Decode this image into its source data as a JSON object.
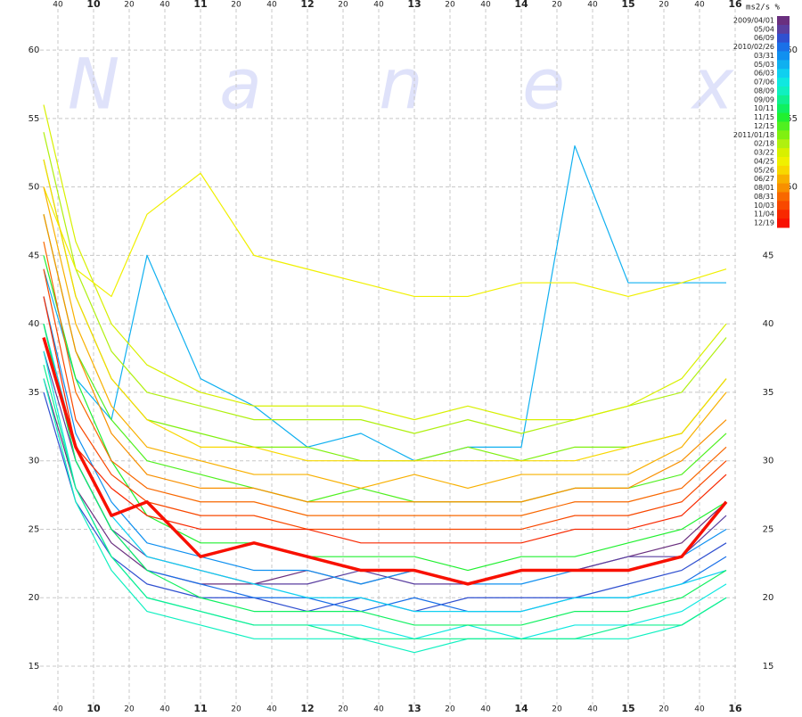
{
  "chart_data": {
    "type": "line",
    "unit_label": "ms2/s %",
    "watermark": [
      "N",
      "a",
      "n",
      "e",
      "x"
    ],
    "x": [
      572,
      590,
      610,
      630,
      660,
      690,
      720,
      750,
      780,
      810,
      840,
      870,
      900,
      930,
      955
    ],
    "xlim": [
      570,
      962
    ],
    "xticks": [
      {
        "value": 580,
        "label": "40"
      },
      {
        "value": 600,
        "label": "10"
      },
      {
        "value": 620,
        "label": "20"
      },
      {
        "value": 640,
        "label": "40"
      },
      {
        "value": 660,
        "label": "11"
      },
      {
        "value": 680,
        "label": "20"
      },
      {
        "value": 700,
        "label": "40"
      },
      {
        "value": 720,
        "label": "12"
      },
      {
        "value": 740,
        "label": "20"
      },
      {
        "value": 760,
        "label": "40"
      },
      {
        "value": 780,
        "label": "13"
      },
      {
        "value": 800,
        "label": "20"
      },
      {
        "value": 820,
        "label": "40"
      },
      {
        "value": 840,
        "label": "14"
      },
      {
        "value": 860,
        "label": "20"
      },
      {
        "value": 880,
        "label": "40"
      },
      {
        "value": 900,
        "label": "15"
      },
      {
        "value": 920,
        "label": "20"
      },
      {
        "value": 940,
        "label": "40"
      },
      {
        "value": 960,
        "label": "16"
      }
    ],
    "ylim": [
      12.2,
      63
    ],
    "yticks": [
      15,
      20,
      25,
      30,
      35,
      40,
      45,
      50,
      55,
      60
    ],
    "colorbar_ticks": [
      50,
      55,
      60
    ],
    "grid": true,
    "series": [
      {
        "name": "2009/04/01",
        "color": "#6a2f7f",
        "values": [
          36,
          28,
          24,
          22,
          21,
          21,
          22,
          21,
          22,
          21,
          22,
          22,
          23,
          24,
          27
        ]
      },
      {
        "name": "05/04",
        "color": "#5a3fa0",
        "values": [
          38,
          30,
          25,
          23,
          22,
          21,
          21,
          22,
          21,
          21,
          22,
          22,
          23,
          23,
          26
        ]
      },
      {
        "name": "06/09",
        "color": "#3050d0",
        "values": [
          35,
          27,
          23,
          21,
          20,
          20,
          19,
          20,
          19,
          20,
          20,
          20,
          21,
          22,
          24
        ]
      },
      {
        "name": "2010/02/26",
        "color": "#1a70e8",
        "values": [
          40,
          30,
          25,
          22,
          21,
          20,
          20,
          19,
          20,
          19,
          19,
          20,
          20,
          21,
          23
        ]
      },
      {
        "name": "03/31",
        "color": "#1090f0",
        "values": [
          42,
          32,
          27,
          24,
          23,
          22,
          22,
          21,
          22,
          21,
          21,
          22,
          22,
          23,
          25
        ]
      },
      {
        "name": "05/03",
        "color": "#10b0f0",
        "values": [
          44,
          36,
          33,
          45,
          36,
          34,
          31,
          32,
          30,
          31,
          31,
          53,
          43,
          43,
          43
        ]
      },
      {
        "name": "06/03",
        "color": "#10d0f0",
        "values": [
          40,
          31,
          26,
          23,
          22,
          21,
          20,
          20,
          19,
          19,
          19,
          20,
          20,
          21,
          22
        ]
      },
      {
        "name": "07/06",
        "color": "#10e8e0",
        "values": [
          38,
          28,
          23,
          20,
          19,
          18,
          18,
          18,
          17,
          18,
          17,
          18,
          18,
          19,
          21
        ]
      },
      {
        "name": "08/09",
        "color": "#10f0c0",
        "values": [
          36,
          27,
          22,
          19,
          18,
          17,
          17,
          17,
          16,
          17,
          17,
          17,
          17,
          18,
          20
        ]
      },
      {
        "name": "09/09",
        "color": "#10f090",
        "values": [
          37,
          28,
          23,
          20,
          19,
          18,
          18,
          17,
          17,
          17,
          17,
          17,
          18,
          18,
          20
        ]
      },
      {
        "name": "10/11",
        "color": "#10f060",
        "values": [
          40,
          30,
          25,
          22,
          20,
          19,
          19,
          19,
          18,
          18,
          18,
          19,
          19,
          20,
          22
        ]
      },
      {
        "name": "11/15",
        "color": "#20f030",
        "values": [
          45,
          36,
          30,
          26,
          24,
          24,
          23,
          23,
          23,
          22,
          23,
          23,
          24,
          25,
          27
        ]
      },
      {
        "name": "12/15",
        "color": "#50f020",
        "values": [
          48,
          38,
          33,
          30,
          29,
          28,
          27,
          28,
          27,
          27,
          27,
          28,
          28,
          29,
          32
        ]
      },
      {
        "name": "2011/01/18",
        "color": "#80f010",
        "values": [
          52,
          42,
          36,
          33,
          32,
          31,
          31,
          30,
          30,
          31,
          30,
          31,
          31,
          32,
          36
        ]
      },
      {
        "name": "02/18",
        "color": "#b0f010",
        "values": [
          54,
          44,
          38,
          35,
          34,
          33,
          33,
          33,
          32,
          33,
          32,
          33,
          34,
          35,
          39
        ]
      },
      {
        "name": "03/22",
        "color": "#d8f000",
        "values": [
          56,
          46,
          40,
          37,
          35,
          34,
          34,
          34,
          33,
          34,
          33,
          33,
          34,
          36,
          40
        ]
      },
      {
        "name": "04/25",
        "color": "#f0f000",
        "values": [
          50,
          44,
          42,
          48,
          51,
          45,
          44,
          43,
          42,
          42,
          43,
          43,
          42,
          43,
          44
        ]
      },
      {
        "name": "05/26",
        "color": "#f8d800",
        "values": [
          52,
          42,
          36,
          33,
          31,
          31,
          30,
          30,
          30,
          30,
          30,
          30,
          31,
          32,
          36
        ]
      },
      {
        "name": "06/27",
        "color": "#f8b000",
        "values": [
          50,
          40,
          34,
          31,
          30,
          29,
          29,
          28,
          29,
          28,
          29,
          29,
          29,
          31,
          35
        ]
      },
      {
        "name": "08/01",
        "color": "#f89000",
        "values": [
          48,
          38,
          32,
          29,
          28,
          28,
          27,
          27,
          27,
          27,
          27,
          28,
          28,
          30,
          33
        ]
      },
      {
        "name": "08/31",
        "color": "#f86800",
        "values": [
          46,
          35,
          30,
          28,
          27,
          27,
          26,
          26,
          26,
          26,
          26,
          27,
          27,
          28,
          31
        ]
      },
      {
        "name": "10/03",
        "color": "#f84800",
        "values": [
          44,
          33,
          29,
          27,
          26,
          26,
          25,
          25,
          25,
          25,
          25,
          26,
          26,
          27,
          30
        ]
      },
      {
        "name": "11/04",
        "color": "#f82800",
        "values": [
          42,
          31,
          28,
          26,
          25,
          25,
          25,
          24,
          24,
          24,
          24,
          25,
          25,
          26,
          29
        ]
      },
      {
        "name": "12/19",
        "color": "#f81000",
        "highlight": true,
        "values": [
          39,
          31,
          26,
          27,
          23,
          24,
          23,
          22,
          22,
          21,
          22,
          22,
          22,
          23,
          27
        ]
      }
    ]
  }
}
